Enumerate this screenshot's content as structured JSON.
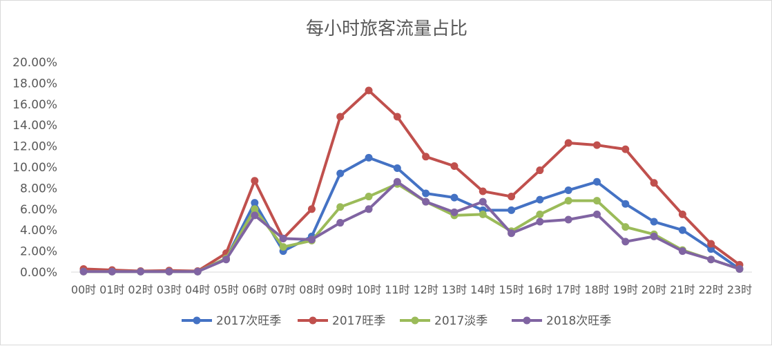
{
  "chart_data": {
    "type": "line",
    "title": "每小时旅客流量占比",
    "xlabel": "",
    "ylabel": "",
    "ylim": [
      0,
      20
    ],
    "y_ticks": [
      "0.00%",
      "2.00%",
      "4.00%",
      "6.00%",
      "8.00%",
      "10.00%",
      "12.00%",
      "14.00%",
      "16.00%",
      "18.00%",
      "20.00%"
    ],
    "categories": [
      "00时",
      "01时",
      "02时",
      "03时",
      "04时",
      "05时",
      "06时",
      "07时",
      "08时",
      "09时",
      "10时",
      "11时",
      "12时",
      "13时",
      "14时",
      "15时",
      "16时",
      "17时",
      "18时",
      "19时",
      "20时",
      "21时",
      "22时",
      "23时"
    ],
    "grid": false,
    "legend_position": "bottom",
    "series": [
      {
        "name": "2017次旺季",
        "color": "#4472c4",
        "values": [
          0.1,
          0.05,
          0.05,
          0.05,
          0.05,
          1.3,
          6.6,
          2.0,
          3.4,
          9.4,
          10.9,
          9.9,
          7.5,
          7.1,
          5.9,
          5.9,
          6.9,
          7.8,
          8.6,
          6.5,
          4.8,
          4.0,
          2.2,
          0.3
        ]
      },
      {
        "name": "2017旺季",
        "color": "#c0504d",
        "values": [
          0.3,
          0.2,
          0.1,
          0.15,
          0.1,
          1.8,
          8.7,
          3.2,
          6.0,
          14.8,
          17.3,
          14.8,
          11.0,
          10.1,
          7.7,
          7.2,
          9.7,
          12.3,
          12.1,
          11.7,
          8.5,
          5.5,
          2.7,
          0.7
        ]
      },
      {
        "name": "2017淡季",
        "color": "#9bbb59",
        "values": [
          0.05,
          0.05,
          0.05,
          0.05,
          0.05,
          1.3,
          6.0,
          2.4,
          3.0,
          6.2,
          7.2,
          8.4,
          6.7,
          5.4,
          5.5,
          3.9,
          5.5,
          6.8,
          6.8,
          4.3,
          3.6,
          2.1,
          1.2,
          0.3
        ]
      },
      {
        "name": "2018次旺季",
        "color": "#8064a2",
        "values": [
          0.05,
          0.05,
          0.05,
          0.05,
          0.05,
          1.2,
          5.4,
          3.2,
          3.1,
          4.7,
          6.0,
          8.6,
          6.7,
          5.7,
          6.7,
          3.7,
          4.8,
          5.0,
          5.5,
          2.9,
          3.4,
          2.0,
          1.2,
          0.3
        ]
      }
    ]
  }
}
